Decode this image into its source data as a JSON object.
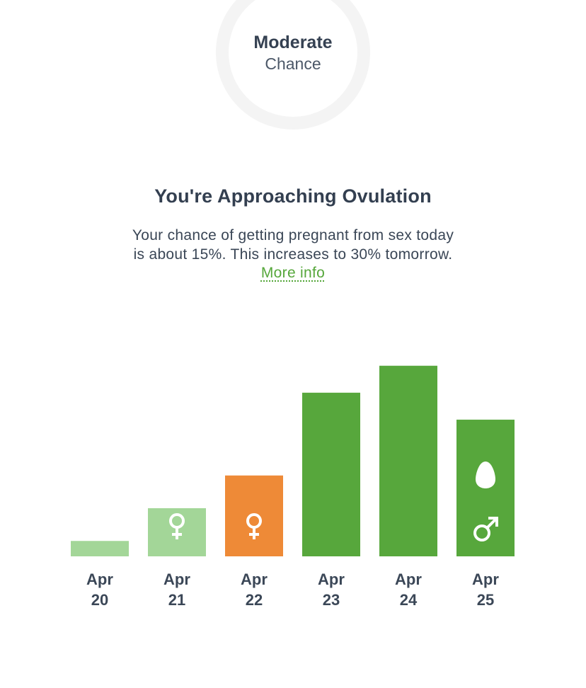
{
  "chance": {
    "primary": "Moderate",
    "secondary": "Chance"
  },
  "heading": "You're Approaching Ovulation",
  "description": {
    "text": "Your chance of getting pregnant from sex today is about 15%. This increases to 30% tomorrow.",
    "link_label": "More info"
  },
  "colors": {
    "low": "#a3d698",
    "today": "#ee8a37",
    "high": "#57a73c",
    "icon": "#ffffff"
  },
  "chart_data": {
    "type": "bar",
    "categories": [
      {
        "month": "Apr",
        "day": "20"
      },
      {
        "month": "Apr",
        "day": "21"
      },
      {
        "month": "Apr",
        "day": "22"
      },
      {
        "month": "Apr",
        "day": "23"
      },
      {
        "month": "Apr",
        "day": "24"
      },
      {
        "month": "Apr",
        "day": "25"
      }
    ],
    "values": [
      8,
      25,
      42,
      85,
      99,
      71
    ],
    "bar_levels": [
      "low",
      "low",
      "today",
      "high",
      "high",
      "high"
    ],
    "icons": [
      [],
      [
        "female-symbol-icon"
      ],
      [
        "female-symbol-icon"
      ],
      [],
      [],
      [
        "egg-icon",
        "male-symbol-icon"
      ]
    ],
    "ylim": [
      0,
      100
    ]
  }
}
